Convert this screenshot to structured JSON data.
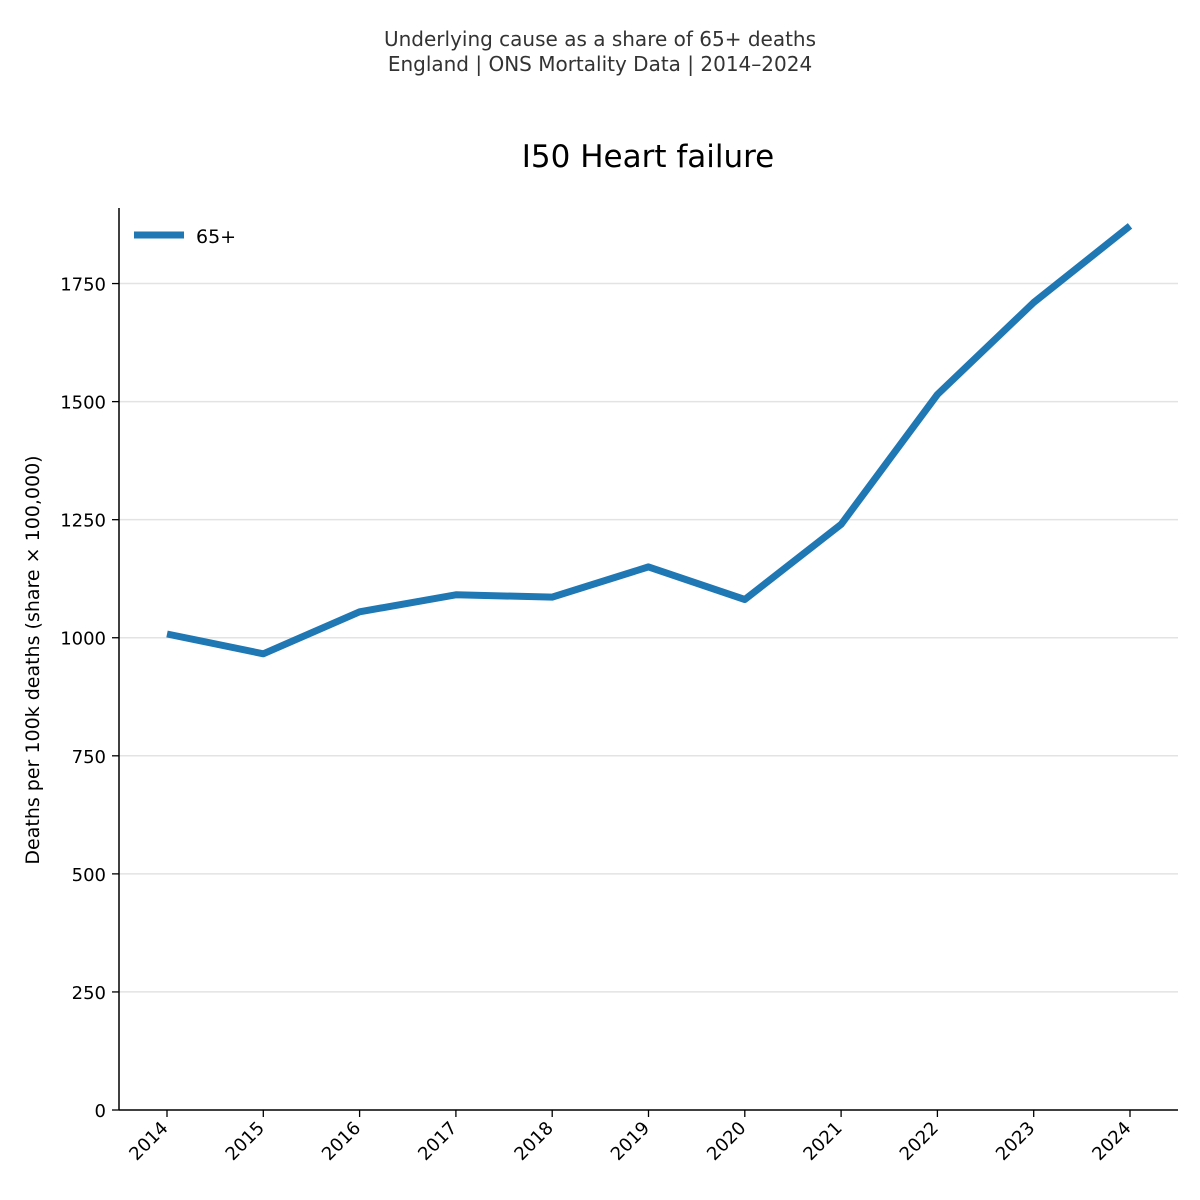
{
  "figure": {
    "suptitle_line1": "Underlying cause as a share of 65+ deaths",
    "suptitle_line2": "England | ONS Mortality Data | 2014–2024"
  },
  "chart_data": {
    "type": "line",
    "title": "I50 Heart failure",
    "xlabel": "",
    "ylabel": "Deaths per 100k deaths (share × 100,000)",
    "categories": [
      "2014",
      "2015",
      "2016",
      "2017",
      "2018",
      "2019",
      "2020",
      "2021",
      "2022",
      "2023",
      "2024"
    ],
    "series": [
      {
        "name": "65+",
        "color": "#1f77b4",
        "values": [
          1008,
          966,
          1055,
          1091,
          1086,
          1150,
          1081,
          1240,
          1515,
          1710,
          1872
        ]
      }
    ],
    "ylim": [
      0,
      1910
    ],
    "yticks": [
      0,
      250,
      500,
      750,
      1000,
      1250,
      1500,
      1750
    ],
    "grid": "y",
    "legend_position": "upper-left"
  }
}
